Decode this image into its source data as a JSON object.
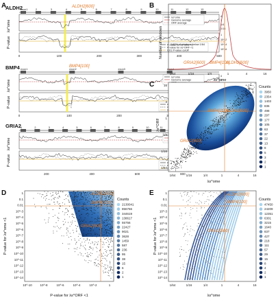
{
  "panels": {
    "A": {
      "letter": "A",
      "genes": [
        {
          "name": "ALDH2",
          "marker": "ALDH2",
          "marker_sup": "[600]",
          "exons": [
            "exon1",
            "2",
            "3",
            "4",
            "5",
            "6",
            "7",
            "8",
            "9",
            "10",
            "11",
            "12",
            "13"
          ],
          "legend_top": [
            "λs^ome",
            "Genome average",
            "ORF average"
          ],
          "legend_bottom": [
            "P-value for λs^ome <1",
            "P-value for λs^ORF <1",
            "0.01 P-value cutoff"
          ],
          "xticks": [
            "0",
            "100",
            "200",
            "300",
            "400",
            "500"
          ]
        },
        {
          "name": "BMP4",
          "marker": "BMP4",
          "marker_sup": "[100]",
          "exons": [
            "exon1",
            "exon2",
            "exon3",
            "exon4"
          ],
          "legend_top": [
            "λs^ome",
            "Genome average",
            "ORF average"
          ],
          "legend_bottom": [
            "P-value for λs^ome <1",
            "P-value for λs^ORF <1",
            "0.01 P-value cutoff"
          ],
          "xticks": [
            "0",
            "100",
            "200",
            "300",
            "400"
          ]
        },
        {
          "name": "GRIA2",
          "marker": "GRIA2",
          "marker_sup": "[600]",
          "exons": [
            "1",
            "2",
            "3",
            "4",
            "5",
            "6",
            "7",
            "8",
            "9",
            "10",
            "11",
            "12",
            "13",
            "14"
          ],
          "legend_top": [
            "λs^ome",
            "Genome average",
            "ORF average"
          ],
          "legend_bottom": [
            "P-value for λs^ome <1",
            "P-value for λs^ORF <1",
            "0.01 P-value cutoff"
          ],
          "xticks": [
            "200",
            "400",
            "600",
            "800"
          ]
        }
      ],
      "y_top": "λs^ome",
      "y_bottom": "P-value",
      "y_ticks_lambda": [
        "4",
        "1",
        "1/4",
        "1/16"
      ],
      "y_ticks_p": [
        "1",
        "10^-2",
        "10^-4",
        "10^-6"
      ],
      "cutoff_label": "0.01"
    },
    "B": {
      "letter": "B",
      "ylabel": "Number of windows",
      "xlabel": "λs^ome",
      "xticks": [
        "1/64",
        "1/16",
        "1/4",
        "1",
        "4",
        "16"
      ],
      "note": "0.63% of windows below 1/64",
      "markers": [
        "GRIA2[600]",
        "BMP4[100]",
        "ALDH2[600]"
      ]
    },
    "C": {
      "letter": "C",
      "ylabel": "λs^ORF",
      "xlabel": "λs^ome",
      "ticks": [
        "1/64",
        "1/16",
        "1/4",
        "1",
        "4",
        "16"
      ],
      "markers": [
        "ALDH2[600]",
        "BMP4[100]",
        "GRIA2[600]"
      ],
      "counts_title": "Counts",
      "counts": [
        "3950",
        "2354",
        "1403",
        "836",
        "498",
        "297",
        "177",
        "105",
        "63",
        "37",
        "22",
        "13",
        "8",
        "5",
        "3",
        "2",
        "1"
      ]
    },
    "D": {
      "letter": "D",
      "ylabel": "P-value for λs^ome <1",
      "xlabel": "P-value for λs^ORF <1",
      "xticks": [
        "10^-10",
        "10^-8",
        "10^-6",
        "10^-4",
        "10^-2",
        "1"
      ],
      "yticks": [
        "1",
        "0.1",
        "0.01",
        "10^-3",
        "10^-4",
        "10^-5",
        "10^-6",
        "10^-7",
        "10^-8",
        "10^-9",
        "10^-10",
        "10^-11",
        "10^-12",
        "10^-13",
        "10^-14"
      ],
      "markers": [
        "ALDH2[600]",
        "BMP4[100]",
        "GRIA2[600]"
      ],
      "counts_title": "Counts",
      "counts": [
        "2130041",
        "856766",
        "344619",
        "138617",
        "55756",
        "22427",
        "9021",
        "3628",
        "1459",
        "587",
        "236",
        "95",
        "38",
        "15",
        "6",
        "2",
        "1"
      ]
    },
    "E": {
      "letter": "E",
      "ylabel": "P-value for λs^ome <1",
      "xlabel": "λs^ome",
      "xticks": [
        "1/64",
        "1/16",
        "1/4",
        "1",
        "4",
        "16"
      ],
      "yticks": [
        "1",
        "0.1",
        "0.01",
        "10^-3",
        "10^-4",
        "10^-5",
        "10^-6",
        "10^-7",
        "10^-8",
        "10^-9",
        "10^-10",
        "10^-11",
        "10^-12",
        "10^-13",
        "10^-14"
      ],
      "markers": [
        "ALDH2[600]",
        "BMP4[100]",
        "GRIA2[600]"
      ],
      "counts_title": "Counts",
      "counts": [
        "47450",
        "24209",
        "12351",
        "6301",
        "3215",
        "1640",
        "837",
        "427",
        "218",
        "111",
        "57",
        "29",
        "15",
        "8",
        "4",
        "2",
        "1"
      ]
    }
  },
  "colors": {
    "orange": "#e07a2a",
    "cutoff": "#e8c25a",
    "highlight": "#f4ec4a",
    "blue_dark": "#0b3a86",
    "blue_light": "#a9d2ef"
  }
}
